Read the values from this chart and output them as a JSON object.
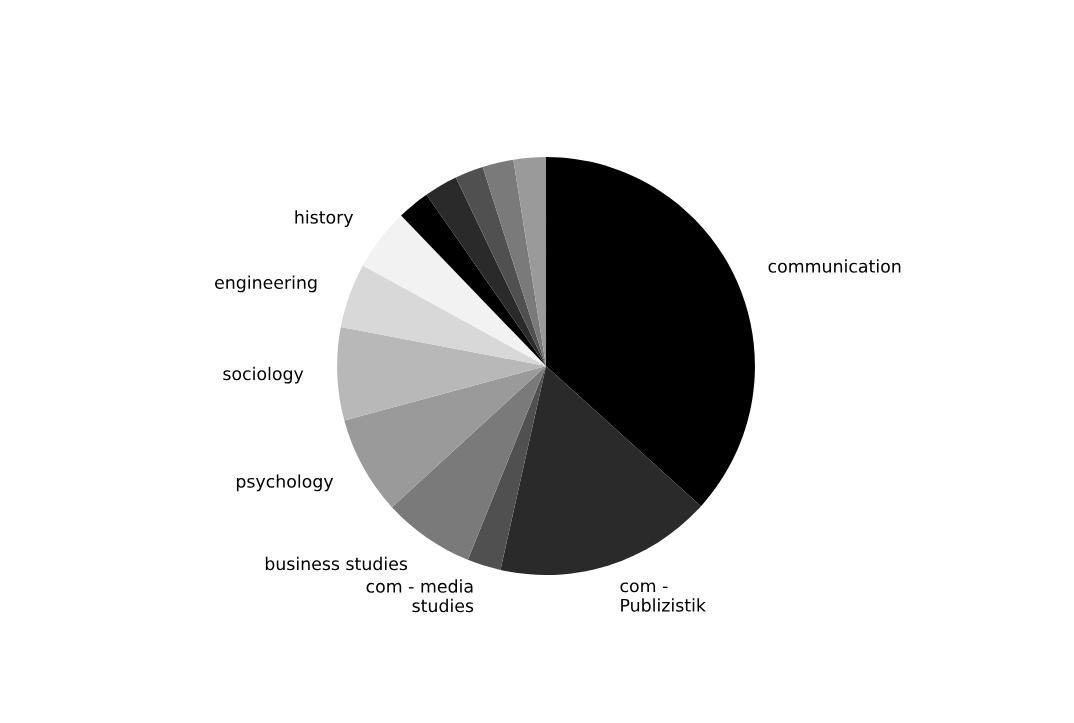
{
  "chart_data": {
    "type": "pie",
    "categories": [
      "communication",
      "com - Publizistik",
      "com - media studies",
      "business studies",
      "psychology",
      "sociology",
      "engineering",
      "history",
      null,
      null,
      null,
      null,
      null
    ],
    "values": [
      36.7,
      16.8,
      2.6,
      7.1,
      7.6,
      7.2,
      5.0,
      4.8,
      2.5,
      2.6,
      2.2,
      2.4,
      2.5
    ],
    "colors": [
      "#000000",
      "#2a2a2a",
      "#505050",
      "#7a7a7a",
      "#9a9a9a",
      "#b8b8b8",
      "#d8d8d8",
      "#f2f2f2",
      "#000000",
      "#2a2a2a",
      "#505050",
      "#7a7a7a",
      "#9a9a9a"
    ],
    "legend": false
  }
}
